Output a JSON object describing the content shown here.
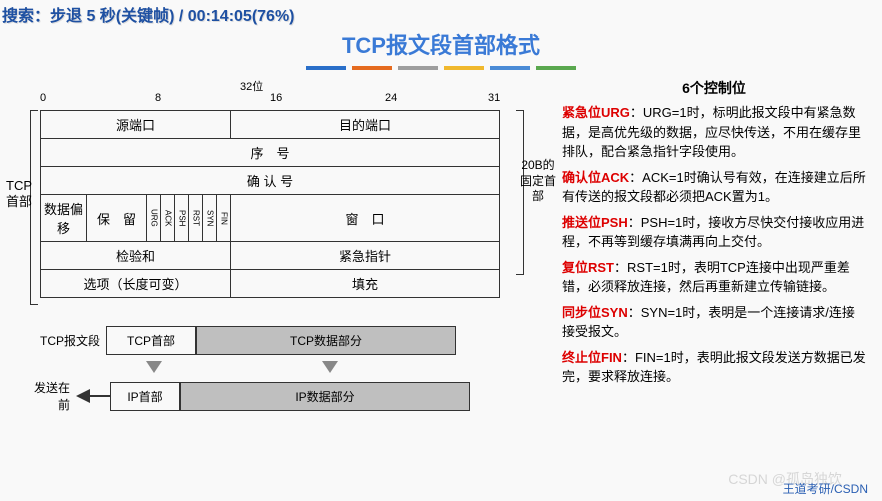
{
  "search_text": "搜索：步退 5 秒(关键帧) / 00:14:05(76%)",
  "title": "TCP报文段首部格式",
  "strip_colors": [
    "#2a6fc9",
    "#e56b1f",
    "#9e9e9e",
    "#f0b82d",
    "#4a8bd6",
    "#5aa84f"
  ],
  "right_heading": "6个控制位",
  "flags": [
    {
      "name": "紧急位URG",
      "body": "：URG=1时，标明此报文段中有紧急数据，是高优先级的数据，应尽快传送，不用在缓存里排队，配合紧急指针字段使用。"
    },
    {
      "name": "确认位ACK",
      "body": "：ACK=1时确认号有效，在连接建立后所有传送的报文段都必须把ACK置为1。"
    },
    {
      "name": "推送位PSH",
      "body": "：PSH=1时，接收方尽快交付接收应用进程，不再等到缓存填满再向上交付。"
    },
    {
      "name": "复位RST",
      "body": "：RST=1时，表明TCP连接中出现严重差错，必须释放连接，然后再重新建立传输链接。"
    },
    {
      "name": "同步位SYN",
      "body": "：SYN=1时，表明是一个连接请求/连接接受报文。"
    },
    {
      "name": "终止位FIN",
      "body": "：FIN=1时，表明此报文段发送方数据已发完，要求释放连接。"
    }
  ],
  "bits": {
    "label": "位",
    "top": "32位",
    "ticks": [
      "0",
      "8",
      "16",
      "24",
      "31"
    ]
  },
  "left_label": "TCP首部",
  "right_label": "20B的固定首部",
  "header_rows": {
    "src_port": "源端口",
    "dst_port": "目的端口",
    "seq": "序　号",
    "ack": "确 认 号",
    "offset": "数据偏移",
    "reserved": "保　留",
    "flag_bits": [
      "URG",
      "ACK",
      "PSH",
      "RST",
      "SYN",
      "FIN"
    ],
    "window": "窗　口",
    "checksum": "检验和",
    "urgent": "紧急指针",
    "options": "选项（长度可变）",
    "padding": "填充"
  },
  "lower": {
    "seg_label": "TCP报文段",
    "tcp_head": "TCP首部",
    "tcp_data": "TCP数据部分",
    "send_label": "发送在前",
    "ip_head": "IP首部",
    "ip_data": "IP数据部分"
  },
  "footer": "王道考研/CSDN",
  "watermark": "CSDN @孤岛独饮"
}
